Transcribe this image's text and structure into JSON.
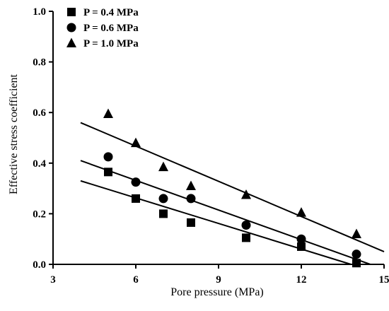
{
  "chart_data": {
    "type": "scatter",
    "title": "",
    "xlabel": "Pore pressure (MPa)",
    "ylabel": "Effective stress coefficient",
    "xlim": [
      3,
      15
    ],
    "ylim": [
      0.0,
      1.0
    ],
    "xticks": [
      3,
      6,
      9,
      12,
      15
    ],
    "yticks": [
      0.0,
      0.2,
      0.4,
      0.6,
      0.8,
      1.0
    ],
    "xtick_labels": [
      "3",
      "6",
      "9",
      "12",
      "15"
    ],
    "ytick_labels": [
      "0.0",
      "0.2",
      "0.4",
      "0.6",
      "0.8",
      "1.0"
    ],
    "grid": false,
    "legend_position": "top-left",
    "series": [
      {
        "name": "P = 0.4 MPa",
        "marker": "square",
        "color": "#000000",
        "x": [
          5,
          6,
          7,
          8,
          10,
          12,
          14
        ],
        "y": [
          0.365,
          0.26,
          0.2,
          0.165,
          0.105,
          0.07,
          0.005
        ],
        "fit": {
          "x": [
            4,
            13.8
          ],
          "y": [
            0.33,
            0.0
          ]
        }
      },
      {
        "name": "P = 0.6 MPa",
        "marker": "circle",
        "color": "#000000",
        "x": [
          5,
          6,
          7,
          8,
          10,
          12,
          14
        ],
        "y": [
          0.425,
          0.325,
          0.26,
          0.26,
          0.155,
          0.1,
          0.04
        ],
        "fit": {
          "x": [
            4,
            14.5
          ],
          "y": [
            0.41,
            0.0
          ]
        }
      },
      {
        "name": "P = 1.0 MPa",
        "marker": "triangle",
        "color": "#000000",
        "x": [
          5,
          6,
          7,
          8,
          10,
          12,
          14
        ],
        "y": [
          0.595,
          0.48,
          0.385,
          0.31,
          0.275,
          0.205,
          0.12
        ],
        "fit": {
          "x": [
            4,
            15
          ],
          "y": [
            0.56,
            0.05
          ]
        }
      }
    ]
  }
}
